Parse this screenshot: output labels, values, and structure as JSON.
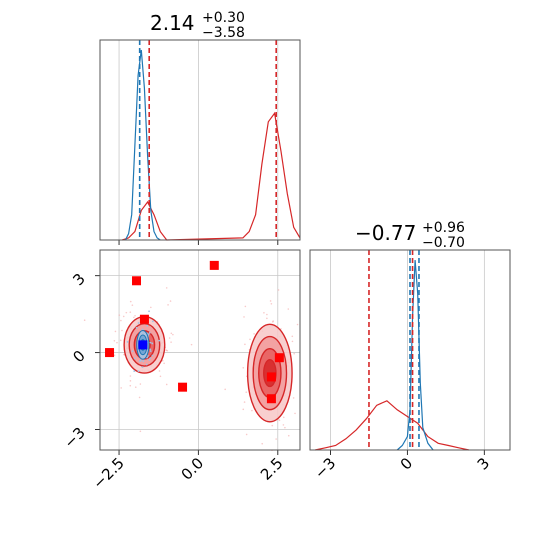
{
  "chart_data": {
    "type": "corner",
    "colors": {
      "posterior_a": "#1f77b4",
      "posterior_b": "#d62728",
      "truth_marker": "#ff0000",
      "mean_marker": "#0000ff"
    },
    "grid": true,
    "parameters": [
      {
        "title": {
          "main": "2.14",
          "sup": "+0.30",
          "sub": "−3.58"
        },
        "range": [
          -3.1,
          3.2
        ],
        "ticks": [
          -2.5,
          0.0,
          2.5
        ],
        "tick_labels": [
          "−2.5",
          "0.0",
          "2.5"
        ]
      },
      {
        "title": {
          "main": "−0.77",
          "sup": "+0.96",
          "sub": "−0.70"
        },
        "range": [
          -3.8,
          4.0
        ],
        "ticks": [
          -3,
          0,
          3
        ],
        "tick_labels": [
          "−3",
          "0",
          "3"
        ]
      }
    ],
    "marginals": [
      {
        "param": 0,
        "blue_hist": {
          "x": [
            -2.3,
            -2.2,
            -2.1,
            -2.0,
            -1.9,
            -1.8,
            -1.7,
            -1.6,
            -1.5,
            -1.4,
            -1.3,
            -1.2
          ],
          "y": [
            0,
            3,
            12,
            45,
            78,
            90,
            72,
            40,
            14,
            4,
            1,
            0
          ]
        },
        "red_hist": {
          "x": [
            -2.4,
            -2.2,
            -2.0,
            -1.8,
            -1.6,
            -1.4,
            -1.2,
            -1.0,
            1.4,
            1.6,
            1.8,
            2.0,
            2.2,
            2.4,
            2.6,
            2.8,
            3.0,
            3.2
          ],
          "y": [
            0,
            1,
            4,
            14,
            18,
            12,
            4,
            0,
            1,
            4,
            12,
            36,
            56,
            60,
            42,
            22,
            6,
            1
          ]
        },
        "blue_lines": [
          -1.85
        ],
        "red_lines": [
          -1.55,
          2.45
        ]
      },
      {
        "param": 1,
        "blue_hist": {
          "x": [
            -0.4,
            -0.2,
            0.0,
            0.1,
            0.2,
            0.3,
            0.4,
            0.5,
            0.6,
            0.8,
            1.0
          ],
          "y": [
            0,
            2,
            6,
            18,
            60,
            85,
            70,
            30,
            10,
            3,
            0
          ]
        },
        "red_hist": {
          "x": [
            -3.6,
            -3.2,
            -2.8,
            -2.4,
            -2.0,
            -1.6,
            -1.2,
            -0.8,
            -0.4,
            0.0,
            0.4,
            0.8,
            1.2,
            1.6,
            2.0,
            2.4
          ],
          "y": [
            0,
            1,
            2,
            5,
            9,
            14,
            20,
            22,
            18,
            15,
            12,
            6,
            3,
            2,
            1,
            0
          ]
        },
        "blue_lines": [
          0.1,
          0.45
        ],
        "red_lines": [
          -1.5,
          0.2
        ]
      }
    ],
    "joint": {
      "blue_cluster": {
        "cx": -1.75,
        "cy": 0.3,
        "sx": 0.12,
        "sy": 0.35
      },
      "red_clusters": [
        {
          "cx": -1.7,
          "cy": 0.3,
          "sx": 0.32,
          "sy": 0.55
        },
        {
          "cx": 2.25,
          "cy": -0.8,
          "sx": 0.35,
          "sy": 0.95
        }
      ],
      "truth_points": [
        {
          "x": -2.8,
          "y": 0.0
        },
        {
          "x": -1.95,
          "y": 2.8
        },
        {
          "x": -1.7,
          "y": 1.3
        },
        {
          "x": -0.5,
          "y": -1.35
        },
        {
          "x": 0.5,
          "y": 3.4
        },
        {
          "x": 2.3,
          "y": -0.95
        },
        {
          "x": 2.3,
          "y": -1.8
        },
        {
          "x": 2.55,
          "y": -0.2
        }
      ],
      "mean_points": [
        {
          "x": -1.75,
          "y": 0.3
        }
      ]
    }
  }
}
